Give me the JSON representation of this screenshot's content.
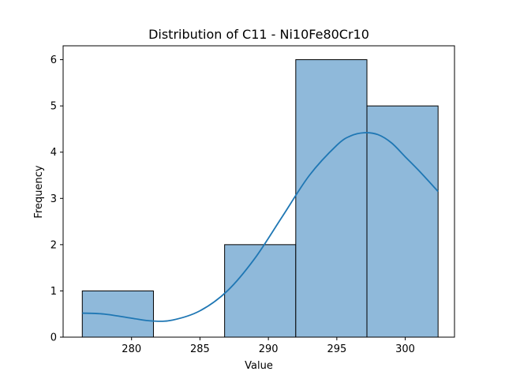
{
  "chart_data": {
    "type": "bar",
    "title": "Distribution of C11 - Ni10Fe80Cr10",
    "xlabel": "Value",
    "ylabel": "Frequency",
    "xlim": [
      275.0,
      303.6
    ],
    "ylim": [
      0,
      6.3
    ],
    "xticks": [
      280,
      285,
      290,
      295,
      300
    ],
    "yticks": [
      0,
      1,
      2,
      3,
      4,
      5,
      6
    ],
    "bins": [
      {
        "x0": 276.4,
        "x1": 281.6,
        "count": 1
      },
      {
        "x0": 281.6,
        "x1": 286.8,
        "count": 0
      },
      {
        "x0": 286.8,
        "x1": 292.0,
        "count": 2
      },
      {
        "x0": 292.0,
        "x1": 297.2,
        "count": 6
      },
      {
        "x0": 297.2,
        "x1": 302.4,
        "count": 5
      }
    ],
    "kde": {
      "x": [
        276.4,
        278.0,
        280.0,
        281.5,
        283.0,
        285.0,
        287.0,
        289.0,
        291.0,
        293.0,
        295.0,
        296.0,
        297.0,
        298.0,
        299.0,
        300.0,
        301.0,
        302.4
      ],
      "y": [
        0.52,
        0.5,
        0.41,
        0.35,
        0.37,
        0.57,
        1.0,
        1.7,
        2.6,
        3.5,
        4.15,
        4.35,
        4.42,
        4.38,
        4.2,
        3.9,
        3.6,
        3.15
      ]
    },
    "colors": {
      "bar_fill": "#8fb9da",
      "bar_edge": "#000000",
      "kde_line": "#1f77b4"
    },
    "grid": false
  }
}
